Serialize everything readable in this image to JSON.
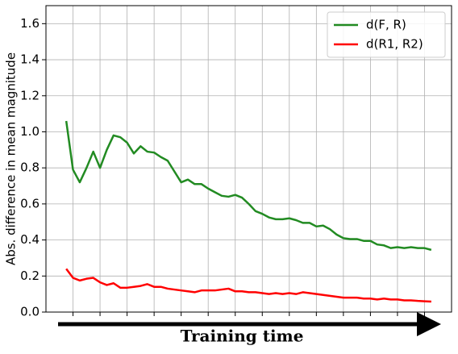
{
  "chart_data": {
    "type": "line",
    "ylabel": "Abs. difference in mean magnitude",
    "xlabel": "Training time",
    "x": [
      3,
      4,
      5,
      6,
      7,
      8,
      9,
      10,
      11,
      12,
      13,
      14,
      15,
      16,
      17,
      18,
      19,
      20,
      21,
      22,
      23,
      24,
      25,
      26,
      27,
      28,
      29,
      30,
      31,
      32,
      33,
      34,
      35,
      36,
      37,
      38,
      39,
      40,
      41,
      42,
      43,
      44,
      45,
      46,
      47,
      48,
      49,
      50,
      51,
      52,
      53,
      54,
      55,
      56,
      57
    ],
    "series": [
      {
        "name": "d(F, R)",
        "color": "#228b22",
        "values": [
          1.06,
          0.79,
          0.72,
          0.8,
          0.89,
          0.8,
          0.9,
          0.98,
          0.97,
          0.94,
          0.88,
          0.92,
          0.89,
          0.885,
          0.86,
          0.84,
          0.78,
          0.72,
          0.735,
          0.71,
          0.71,
          0.685,
          0.665,
          0.645,
          0.64,
          0.65,
          0.635,
          0.6,
          0.56,
          0.545,
          0.525,
          0.515,
          0.515,
          0.52,
          0.51,
          0.495,
          0.495,
          0.475,
          0.48,
          0.46,
          0.43,
          0.41,
          0.405,
          0.405,
          0.395,
          0.395,
          0.375,
          0.37,
          0.355,
          0.36,
          0.355,
          0.36,
          0.355,
          0.355,
          0.345
        ]
      },
      {
        "name": "d(R1, R2)",
        "color": "#ff0000",
        "values": [
          0.24,
          0.19,
          0.175,
          0.185,
          0.19,
          0.165,
          0.15,
          0.16,
          0.135,
          0.135,
          0.14,
          0.145,
          0.155,
          0.14,
          0.14,
          0.13,
          0.125,
          0.12,
          0.115,
          0.11,
          0.12,
          0.12,
          0.12,
          0.125,
          0.13,
          0.115,
          0.115,
          0.11,
          0.11,
          0.105,
          0.1,
          0.105,
          0.1,
          0.105,
          0.1,
          0.11,
          0.105,
          0.1,
          0.095,
          0.09,
          0.085,
          0.08,
          0.08,
          0.08,
          0.075,
          0.075,
          0.07,
          0.075,
          0.07,
          0.07,
          0.065,
          0.065,
          0.062,
          0.06,
          0.058
        ]
      }
    ],
    "xlim": [
      0,
      60
    ],
    "xticks": [
      4,
      8,
      12,
      16,
      20,
      24,
      28,
      32,
      36,
      40,
      44,
      48,
      52,
      56
    ],
    "ylim": [
      0,
      1.7
    ],
    "yticks": [
      {
        "value": 0,
        "label": "0.0"
      },
      0.2,
      0.4,
      0.6,
      0.8,
      {
        "value": 1,
        "label": "1.0"
      },
      1.2,
      1.4,
      1.6
    ],
    "grid": true,
    "legend": "upper right"
  }
}
